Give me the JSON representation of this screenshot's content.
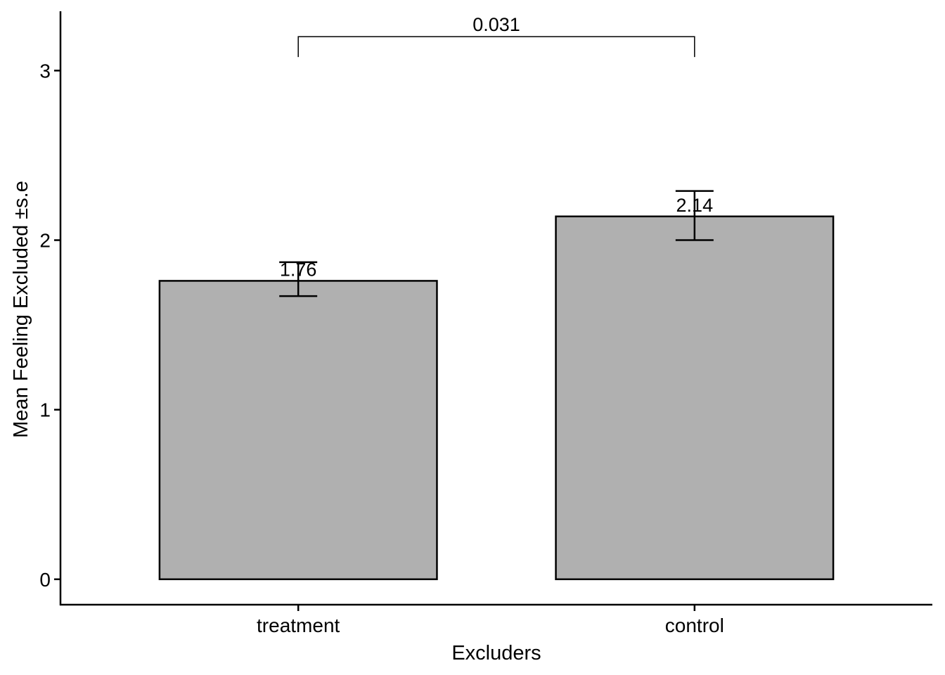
{
  "chart_data": {
    "type": "bar",
    "title": "",
    "xlabel": "Excluders",
    "ylabel": "Mean Feeling Excluded ±s.e",
    "categories": [
      "treatment",
      "control"
    ],
    "values": [
      1.76,
      2.14
    ],
    "value_labels": [
      "1.76",
      "2.14"
    ],
    "error_lower": [
      1.67,
      2.0
    ],
    "error_upper": [
      1.87,
      2.29
    ],
    "yticks": [
      0,
      1,
      2,
      3
    ],
    "ytick_labels": [
      "0",
      "1",
      "2",
      "3"
    ],
    "ylim": [
      -0.15,
      3.35
    ],
    "grid": false,
    "legend": "none",
    "bar_fill": "#b0b0b0",
    "bar_stroke": "#000000",
    "comparison": {
      "from": "treatment",
      "to": "control",
      "label": "0.031",
      "y_top": 3.2,
      "y_bottom": 3.08
    }
  }
}
